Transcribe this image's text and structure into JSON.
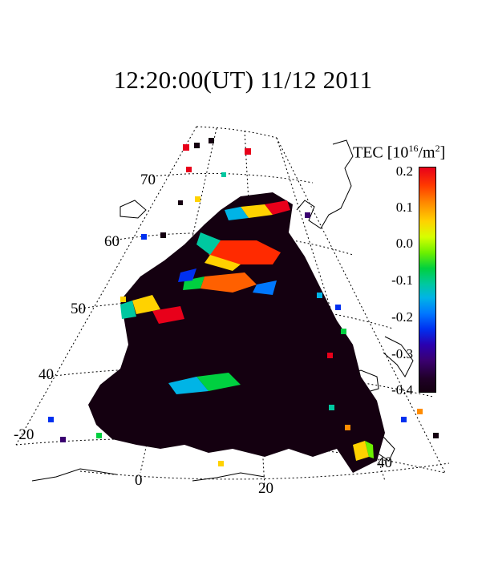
{
  "title": "12:20:00(UT)  11/12 2011",
  "colorbar": {
    "label_main": "TEC [10",
    "label_exp": "16",
    "label_unit": "/m",
    "label_exp2": "2",
    "label_end": "]",
    "ticks": [
      "0.2",
      "0.1",
      "0.0",
      "-0.1",
      "-0.2",
      "-0.3",
      "-0.4"
    ],
    "range": [
      -0.4,
      0.2
    ]
  },
  "latitude_labels": [
    "70",
    "60",
    "50",
    "40"
  ],
  "longitude_labels": [
    "-20",
    "0",
    "20",
    "40"
  ],
  "colors": {
    "background": "#ffffff",
    "data_low": "#140010",
    "data_high": "#e8001a"
  }
}
